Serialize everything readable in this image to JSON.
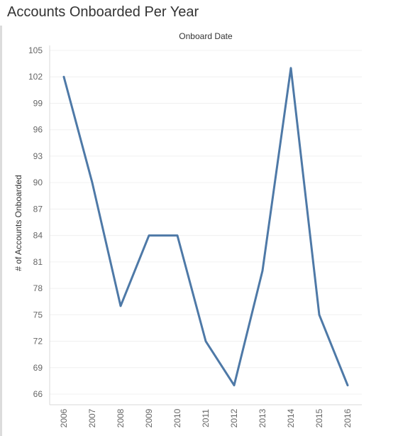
{
  "title": "Accounts Onboarded Per Year",
  "chart_data": {
    "type": "line",
    "title": "Accounts Onboarded Per Year",
    "xlabel": "Onboard Date",
    "ylabel": "# of Accounts Onboarded",
    "categories": [
      "2006",
      "2007",
      "2008",
      "2009",
      "2010",
      "2011",
      "2012",
      "2013",
      "2014",
      "2015",
      "2016"
    ],
    "series": [
      {
        "values": [
          102,
          90,
          76,
          84,
          84,
          72,
          67,
          80,
          103,
          75,
          67
        ]
      }
    ],
    "y_ticks": [
      "105",
      "102",
      "99",
      "96",
      "93",
      "90",
      "87",
      "84",
      "81",
      "78",
      "75",
      "72",
      "69",
      "66"
    ],
    "ylim": [
      65,
      105.5
    ],
    "grid": true,
    "line_color": "#4e79a7"
  }
}
